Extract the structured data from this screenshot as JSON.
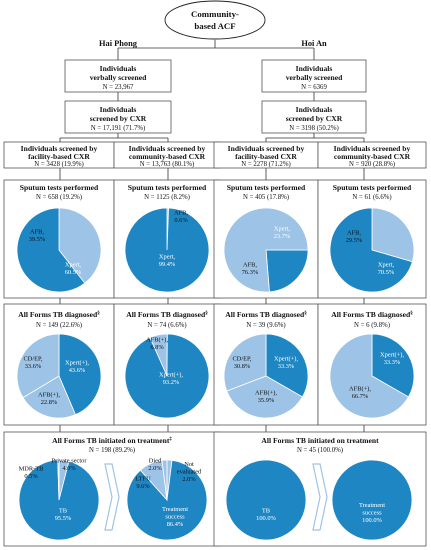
{
  "root": {
    "line1": "Community-",
    "line2": "based ACF"
  },
  "regions": [
    {
      "name": "Hai Phong",
      "verbal": {
        "line1": "Individuals",
        "line2": "verbally screened",
        "n": "N = 23,967"
      },
      "cxr": {
        "line1": "Individuals",
        "line2": "screened by CXR",
        "n": "N = 17,191 (71.7%)"
      },
      "groups": [
        {
          "h1": "Individuals screened by",
          "h2": "facility-based CXR",
          "n": "N = 3428 (19.9%)",
          "sputum_title": "Sputum tests performed",
          "sputum_n": "N = 658 (19.2%)",
          "diag_title": "All Forms TB diagnosed",
          "diag_sup": "§",
          "diag_n": "N = 149 (22.6%)"
        },
        {
          "h1": "Individuals screened by",
          "h2": "community-based CXR",
          "n": "N = 13,763 (80.1%)",
          "sputum_title": "Sputum tests performed",
          "sputum_n": "N = 1125 (8.2%)",
          "diag_title": "All Forms TB diagnosed",
          "diag_sup": "§",
          "diag_n": "N = 74 (6.6%)"
        }
      ],
      "treat": {
        "title": "All Forms TB initiated on treatment",
        "sup": "‡",
        "n": "N = 198 (89.2%)"
      }
    },
    {
      "name": "Hoi An",
      "verbal": {
        "line1": "Individuals",
        "line2": "verbally screened",
        "n": "N = 6369"
      },
      "cxr": {
        "line1": "Individuals",
        "line2": "screened by CXR",
        "n": "N = 3198 (50.2%)"
      },
      "groups": [
        {
          "h1": "Individuals screened by",
          "h2": "facility-based CXR",
          "n": "N = 2278 (71.2%)",
          "sputum_title": "Sputum tests performed",
          "sputum_n": "N = 405 (17.8%)",
          "diag_title": "All Forms TB diagnosed",
          "diag_sup": "§",
          "diag_n": "N = 39 (9.6%)"
        },
        {
          "h1": "Individuals screened by",
          "h2": "community-based CXR",
          "n": "N = 920 (28.8%)",
          "sputum_title": "Sputum tests performed",
          "sputum_n": "N = 61 (6.6%)",
          "diag_title": "All Forms TB diagnosed",
          "diag_sup": "§",
          "diag_n": "N = 6 (9.8%)"
        }
      ],
      "treat": {
        "title": "All Forms TB initiated on treatment",
        "sup": "",
        "n": "N = 45 (100.0%)"
      }
    }
  ],
  "colors": {
    "dark": "#1f86c4",
    "light": "#9dc3e6",
    "arrow": "#9dc3e6",
    "box_border": "#555555"
  },
  "chart_data": [
    {
      "type": "pie",
      "name": "hp-fac-sputum",
      "slices": [
        {
          "label": [
            "AFB,",
            "39.5%"
          ],
          "value": 39.5,
          "color": "light"
        },
        {
          "label": [
            "Xpert,",
            "60.5%"
          ],
          "value": 60.5,
          "color": "dark"
        }
      ]
    },
    {
      "type": "pie",
      "name": "hp-com-sputum",
      "slices": [
        {
          "label": [
            "AFB,",
            "0.6%"
          ],
          "value": 0.6,
          "color": "light"
        },
        {
          "label": [
            "Xpert,",
            "99.4%"
          ],
          "value": 99.4,
          "color": "dark"
        }
      ]
    },
    {
      "type": "pie",
      "name": "ha-fac-sputum",
      "slices": [
        {
          "label": [
            "Xpert,",
            "23.7%"
          ],
          "value": 23.7,
          "color": "dark"
        },
        {
          "label": [
            "AFB,",
            "76.3%"
          ],
          "value": 76.3,
          "color": "light"
        }
      ]
    },
    {
      "type": "pie",
      "name": "ha-com-sputum",
      "slices": [
        {
          "label": [
            "AFB,",
            "29.5%"
          ],
          "value": 29.5,
          "color": "light"
        },
        {
          "label": [
            "Xpert,",
            "70.5%"
          ],
          "value": 70.5,
          "color": "dark"
        }
      ]
    },
    {
      "type": "pie",
      "name": "hp-fac-diag",
      "slices": [
        {
          "label": [
            "Xpert(+),",
            "43.6%"
          ],
          "value": 43.6,
          "color": "dark"
        },
        {
          "label": [
            "AFB(+),",
            "22.8%"
          ],
          "value": 22.8,
          "color": "light"
        },
        {
          "label": [
            "CD/EP,",
            "33.6%"
          ],
          "value": 33.6,
          "color": "light"
        }
      ]
    },
    {
      "type": "pie",
      "name": "hp-com-diag",
      "slices": [
        {
          "label": [
            "AFB(+),",
            "6.8%"
          ],
          "value": 6.8,
          "color": "light"
        },
        {
          "label": [
            "Xpert(+),",
            "93.2%"
          ],
          "value": 93.2,
          "color": "dark"
        }
      ]
    },
    {
      "type": "pie",
      "name": "ha-fac-diag",
      "slices": [
        {
          "label": [
            "Xpert(+),",
            "33.3%"
          ],
          "value": 33.3,
          "color": "dark"
        },
        {
          "label": [
            "AFB(+),",
            "35.9%"
          ],
          "value": 35.9,
          "color": "light"
        },
        {
          "label": [
            "CD/EP,",
            "30.8%"
          ],
          "value": 30.8,
          "color": "light"
        }
      ]
    },
    {
      "type": "pie",
      "name": "ha-com-diag",
      "slices": [
        {
          "label": [
            "Xpert(+),",
            "33.3%"
          ],
          "value": 33.3,
          "color": "dark"
        },
        {
          "label": [
            "AFB(+),",
            "66.7%"
          ],
          "value": 66.7,
          "color": "light"
        }
      ]
    },
    {
      "type": "pie",
      "name": "hp-treat",
      "slices": [
        {
          "label": [
            "Private sector",
            "4.0%"
          ],
          "value": 4.0,
          "color": "light"
        },
        {
          "label": [
            "TB",
            "95.5%"
          ],
          "value": 95.5,
          "color": "dark"
        },
        {
          "label": [
            "MDR-TB",
            "0.5%"
          ],
          "value": 0.5,
          "color": "light"
        }
      ]
    },
    {
      "type": "pie",
      "name": "hp-outcome",
      "slices": [
        {
          "label": [
            "Not",
            "evaluated",
            "2.0%"
          ],
          "value": 2.0,
          "color": "light"
        },
        {
          "label": [
            "Treatment",
            "success",
            "86.4%"
          ],
          "value": 86.4,
          "color": "dark"
        },
        {
          "label": [
            "LTFU",
            "9.6%"
          ],
          "value": 9.6,
          "color": "light"
        },
        {
          "label": [
            "Died",
            "2.0%"
          ],
          "value": 2.0,
          "color": "light"
        }
      ]
    },
    {
      "type": "pie",
      "name": "ha-treat",
      "slices": [
        {
          "label": [
            "TB",
            "100.0%"
          ],
          "value": 100.0,
          "color": "dark"
        }
      ]
    },
    {
      "type": "pie",
      "name": "ha-outcome",
      "slices": [
        {
          "label": [
            "Treatment",
            "success",
            "100.0%"
          ],
          "value": 100.0,
          "color": "dark"
        }
      ]
    }
  ]
}
